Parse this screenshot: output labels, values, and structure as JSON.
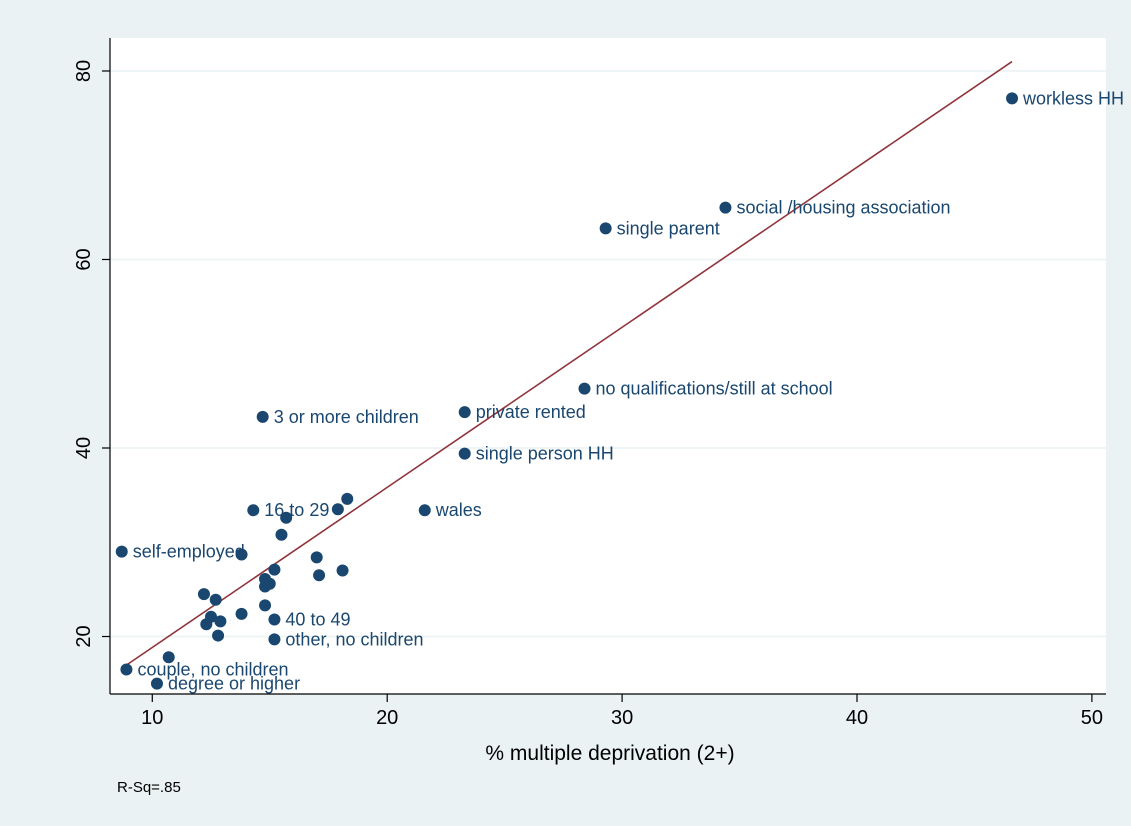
{
  "chart_data": {
    "type": "scatter",
    "xlabel": "% multiple deprivation (2+)",
    "ylabel": "",
    "xlim": [
      8.2,
      50.6
    ],
    "ylim": [
      13.9,
      83.5
    ],
    "xticks": [
      10,
      20,
      30,
      40,
      50
    ],
    "yticks": [
      20,
      40,
      60,
      80
    ],
    "grid": "horizontal",
    "note": "R-Sq=.85",
    "fit_line": {
      "x": [
        8.8,
        46.6
      ],
      "y": [
        16.8,
        81.0
      ]
    },
    "colors": {
      "marker": "#1a476f",
      "fit_line": "#90353b",
      "background": "#eaf2f3",
      "plot_background": "#ffffff"
    },
    "points": [
      {
        "x": 46.6,
        "y": 77.1,
        "label": "workless HH"
      },
      {
        "x": 34.4,
        "y": 65.5,
        "label": "social /housing association"
      },
      {
        "x": 29.3,
        "y": 63.3,
        "label": "single parent"
      },
      {
        "x": 28.4,
        "y": 46.3,
        "label": "no qualifications/still at school"
      },
      {
        "x": 23.3,
        "y": 43.8,
        "label": "private rented"
      },
      {
        "x": 14.7,
        "y": 43.3,
        "label": "3 or more children"
      },
      {
        "x": 23.3,
        "y": 39.4,
        "label": "single person HH"
      },
      {
        "x": 21.6,
        "y": 33.4,
        "label": "wales"
      },
      {
        "x": 14.3,
        "y": 33.4,
        "label": "16 to 29"
      },
      {
        "x": 18.3,
        "y": 34.6,
        "label": ""
      },
      {
        "x": 17.9,
        "y": 33.5,
        "label": ""
      },
      {
        "x": 15.7,
        "y": 32.6,
        "label": ""
      },
      {
        "x": 15.5,
        "y": 30.8,
        "label": ""
      },
      {
        "x": 8.7,
        "y": 29.0,
        "label": "self-employed"
      },
      {
        "x": 13.8,
        "y": 28.7,
        "label": ""
      },
      {
        "x": 17.0,
        "y": 28.4,
        "label": ""
      },
      {
        "x": 15.2,
        "y": 27.1,
        "label": ""
      },
      {
        "x": 18.1,
        "y": 27.0,
        "label": ""
      },
      {
        "x": 17.1,
        "y": 26.5,
        "label": ""
      },
      {
        "x": 14.8,
        "y": 26.1,
        "label": ""
      },
      {
        "x": 15.0,
        "y": 25.6,
        "label": ""
      },
      {
        "x": 14.8,
        "y": 25.3,
        "label": ""
      },
      {
        "x": 12.2,
        "y": 24.5,
        "label": ""
      },
      {
        "x": 12.7,
        "y": 23.9,
        "label": ""
      },
      {
        "x": 14.8,
        "y": 23.3,
        "label": ""
      },
      {
        "x": 13.8,
        "y": 22.4,
        "label": ""
      },
      {
        "x": 12.5,
        "y": 22.1,
        "label": ""
      },
      {
        "x": 15.2,
        "y": 21.8,
        "label": "40 to 49"
      },
      {
        "x": 12.9,
        "y": 21.6,
        "label": ""
      },
      {
        "x": 12.3,
        "y": 21.3,
        "label": ""
      },
      {
        "x": 12.8,
        "y": 20.1,
        "label": ""
      },
      {
        "x": 15.2,
        "y": 19.7,
        "label": "other, no children"
      },
      {
        "x": 10.7,
        "y": 17.8,
        "label": ""
      },
      {
        "x": 8.9,
        "y": 16.5,
        "label": "couple, no children"
      },
      {
        "x": 10.2,
        "y": 15.0,
        "label": "degree or higher"
      }
    ]
  }
}
